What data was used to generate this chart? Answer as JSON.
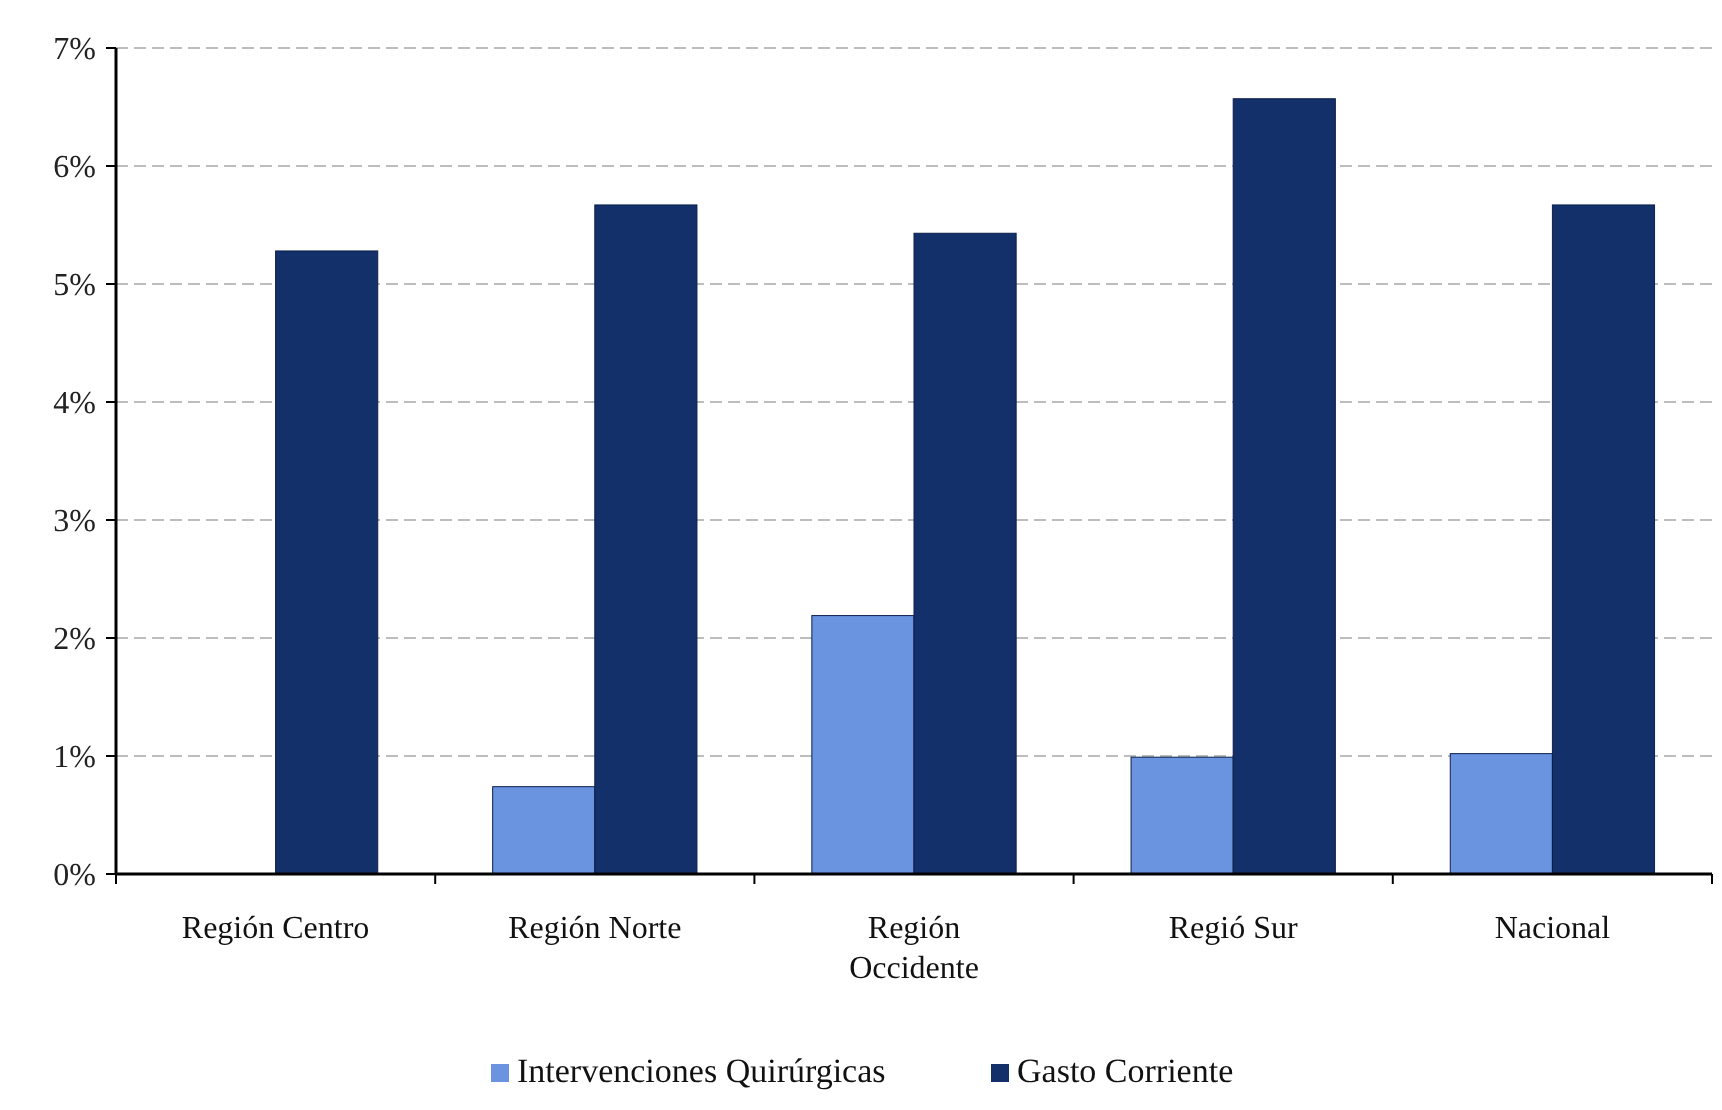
{
  "chart_data": {
    "type": "bar",
    "categories": [
      "Región Centro",
      "Región Norte",
      "Región Occidente",
      "Regió Sur",
      "Nacional"
    ],
    "series": [
      {
        "name": "Intervenciones Quirúrgicas",
        "color": "#6a94e0",
        "values": [
          null,
          0.74,
          2.19,
          0.99,
          1.02
        ]
      },
      {
        "name": "Gasto Corriente",
        "color": "#14306a",
        "values": [
          5.28,
          5.67,
          5.43,
          6.57,
          5.67
        ]
      }
    ],
    "ylim": [
      0,
      7
    ],
    "yticks": [
      {
        "value": 0,
        "label": "0%"
      },
      {
        "value": 1,
        "label": "1%"
      },
      {
        "value": 2,
        "label": "2%"
      },
      {
        "value": 3,
        "label": "3%"
      },
      {
        "value": 4,
        "label": "4%"
      },
      {
        "value": 5,
        "label": "5%"
      },
      {
        "value": 6,
        "label": "6%"
      },
      {
        "value": 7,
        "label": "7%"
      }
    ],
    "grid": "y",
    "legend": "bottom"
  }
}
